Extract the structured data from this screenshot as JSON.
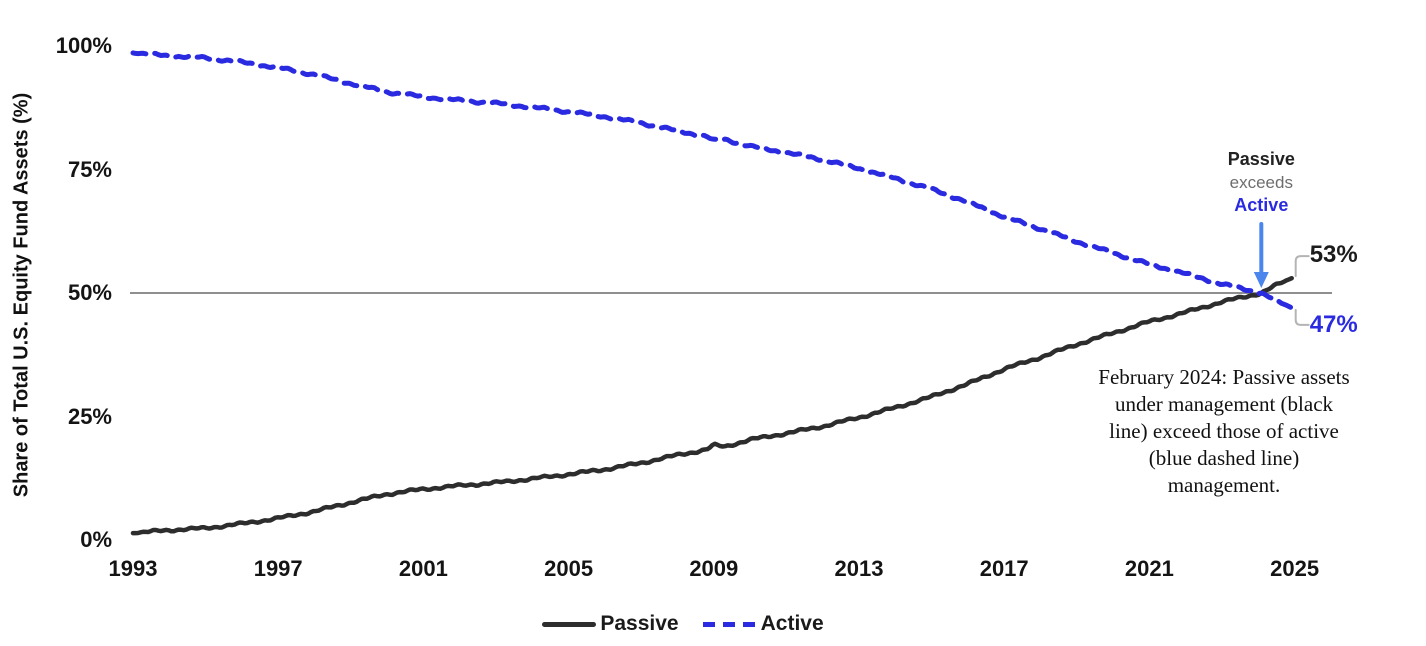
{
  "page": {
    "background": "#ffffff"
  },
  "colors": {
    "passive_line": "#2d2d2d",
    "active_line": "#2a2ae0",
    "arrow": "#4b86ec",
    "reference_line": "#8f8f8f",
    "leader": "#b4b4b4",
    "exceeds_text": "#6e6e6e",
    "axis_text": "#141414"
  },
  "legend": {
    "items": [
      {
        "label": "Passive",
        "style": "solid",
        "color": "#2d2d2d"
      },
      {
        "label": "Active",
        "style": "dashed",
        "color": "#2a2ae0"
      }
    ]
  },
  "annotations": {
    "crossover": {
      "line1": "Passive",
      "line2": "exceeds",
      "line3": "Active"
    },
    "note_lines": [
      "February 2024: Passive assets",
      "under management (black",
      "line) exceed those of active",
      "(blue dashed line)",
      "management."
    ],
    "end_label_passive": "53%",
    "end_label_active": "47%"
  },
  "chart_data": {
    "type": "line",
    "title": "",
    "xlabel": "",
    "ylabel": "Share of Total U.S. Equity Fund Assets (%)",
    "xlim": [
      1993,
      2025
    ],
    "ylim": [
      0,
      100
    ],
    "grid": "none (single horizontal reference line at 50%)",
    "reference_line_y": 50,
    "legend_position": "bottom-center",
    "x_ticks": [
      1993,
      1997,
      2001,
      2005,
      2009,
      2013,
      2017,
      2021,
      2025
    ],
    "x_tick_labels": [
      "1993",
      "1997",
      "2001",
      "2005",
      "2009",
      "2013",
      "2017",
      "2021",
      "2025"
    ],
    "y_ticks": [
      0,
      25,
      50,
      75,
      100
    ],
    "y_tick_labels": [
      "0%",
      "25%",
      "50%",
      "75%",
      "100%"
    ],
    "crossover": {
      "x": 2024.083,
      "y": 50,
      "meaning": "February 2024: Passive exceeds Active"
    },
    "series": [
      {
        "name": "Passive",
        "color": "#2d2d2d",
        "line_style": "solid",
        "points": [
          [
            1993,
            1.4
          ],
          [
            1994,
            2.0
          ],
          [
            1995,
            2.4
          ],
          [
            1996,
            3.3
          ],
          [
            1997,
            4.4
          ],
          [
            1998,
            5.8
          ],
          [
            1999,
            7.6
          ],
          [
            2000,
            9.3
          ],
          [
            2001,
            10.3
          ],
          [
            2002,
            11.0
          ],
          [
            2003,
            11.6
          ],
          [
            2004,
            12.4
          ],
          [
            2005,
            13.3
          ],
          [
            2006,
            14.3
          ],
          [
            2007,
            15.6
          ],
          [
            2008,
            17.2
          ],
          [
            2008.8,
            18.3
          ],
          [
            2009.0,
            19.2
          ],
          [
            2009.3,
            18.9
          ],
          [
            2010,
            20.3
          ],
          [
            2011,
            21.6
          ],
          [
            2012,
            23.0
          ],
          [
            2013,
            24.8
          ],
          [
            2014,
            26.8
          ],
          [
            2015,
            29.0
          ],
          [
            2016,
            31.6
          ],
          [
            2017,
            34.6
          ],
          [
            2018,
            37.0
          ],
          [
            2019,
            39.6
          ],
          [
            2020,
            41.9
          ],
          [
            2021,
            44.2
          ],
          [
            2022,
            46.1
          ],
          [
            2023,
            48.2
          ],
          [
            2024.083,
            50.0
          ],
          [
            2024.5,
            51.6
          ],
          [
            2024.92,
            53.0
          ]
        ]
      },
      {
        "name": "Active",
        "color": "#2a2ae0",
        "line_style": "dashed",
        "points": [
          [
            1993,
            98.6
          ],
          [
            1994,
            98.0
          ],
          [
            1995,
            97.6
          ],
          [
            1996,
            96.7
          ],
          [
            1997,
            95.6
          ],
          [
            1998,
            94.2
          ],
          [
            1999,
            92.4
          ],
          [
            2000,
            90.7
          ],
          [
            2001,
            89.7
          ],
          [
            2002,
            89.0
          ],
          [
            2003,
            88.4
          ],
          [
            2004,
            87.6
          ],
          [
            2005,
            86.7
          ],
          [
            2006,
            85.7
          ],
          [
            2007,
            84.4
          ],
          [
            2008,
            82.8
          ],
          [
            2008.8,
            81.7
          ],
          [
            2009.0,
            80.8
          ],
          [
            2009.3,
            81.1
          ],
          [
            2010,
            79.7
          ],
          [
            2011,
            78.4
          ],
          [
            2012,
            77.0
          ],
          [
            2013,
            75.2
          ],
          [
            2014,
            73.2
          ],
          [
            2015,
            71.0
          ],
          [
            2016,
            68.4
          ],
          [
            2017,
            65.4
          ],
          [
            2018,
            63.0
          ],
          [
            2019,
            60.4
          ],
          [
            2020,
            58.1
          ],
          [
            2021,
            55.8
          ],
          [
            2022,
            53.9
          ],
          [
            2023,
            51.8
          ],
          [
            2024.083,
            50.0
          ],
          [
            2024.5,
            48.4
          ],
          [
            2024.92,
            47.0
          ]
        ]
      }
    ]
  }
}
